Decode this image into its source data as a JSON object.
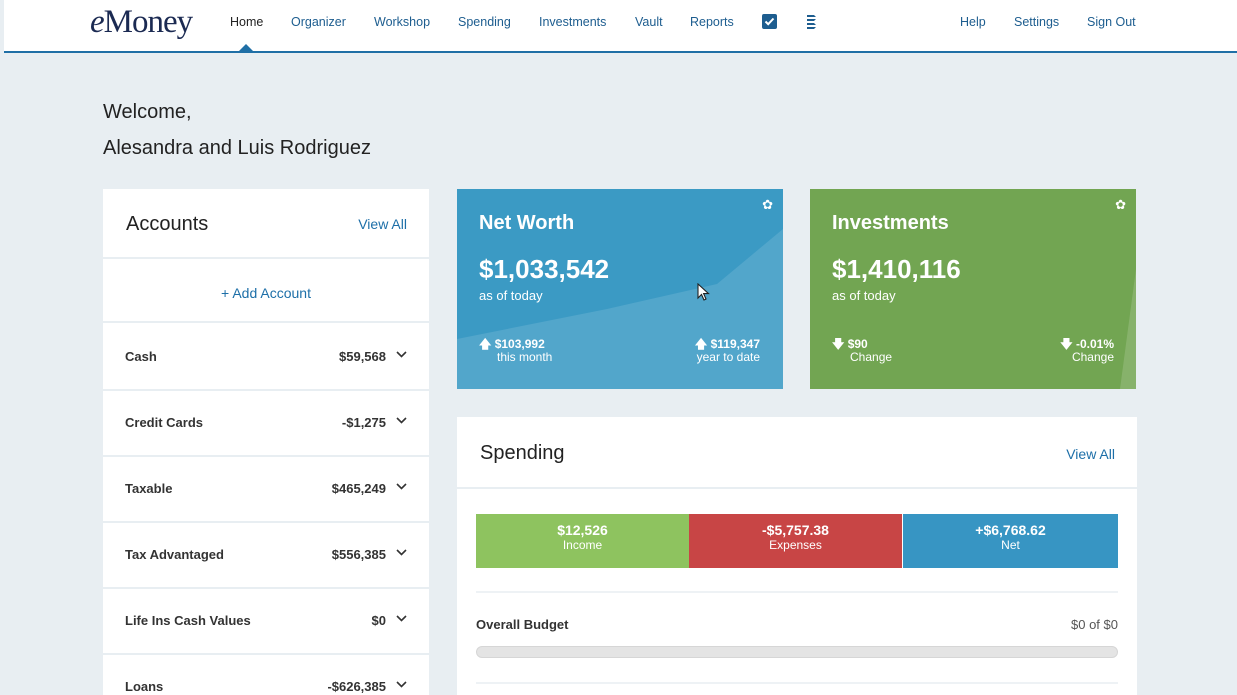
{
  "app": {
    "logo": "eMoney"
  },
  "nav": {
    "items": [
      "Home",
      "Organizer",
      "Workshop",
      "Spending",
      "Investments",
      "Vault",
      "Reports"
    ],
    "right": [
      "Help",
      "Settings",
      "Sign Out"
    ],
    "icons": [
      "checklist-icon",
      "document-stack-icon"
    ]
  },
  "welcome": {
    "line1": "Welcome,",
    "line2": "Alesandra and Luis Rodriguez"
  },
  "accounts": {
    "title": "Accounts",
    "view_all": "View All",
    "add_account": "+ Add Account",
    "rows": [
      {
        "name": "Cash",
        "value": "$59,568"
      },
      {
        "name": "Credit Cards",
        "value": "-$1,275"
      },
      {
        "name": "Taxable",
        "value": "$465,249"
      },
      {
        "name": "Tax Advantaged",
        "value": "$556,385"
      },
      {
        "name": "Life Ins Cash Values",
        "value": "$0"
      },
      {
        "name": "Loans",
        "value": "-$626,385"
      }
    ]
  },
  "net_worth": {
    "title": "Net Worth",
    "value": "$1,033,542",
    "as_of": "as of today",
    "month_change": "$103,992",
    "month_label": "this month",
    "ytd_change": "$119,347",
    "ytd_label": "year to date",
    "color": "#3b9ac4"
  },
  "investments": {
    "title": "Investments",
    "value": "$1,410,116",
    "as_of": "as of today",
    "change_amount": "$90",
    "change_amount_label": "Change",
    "change_pct": "-0.01%",
    "change_pct_label": "Change",
    "color": "#72a552"
  },
  "spending": {
    "title": "Spending",
    "view_all": "View All",
    "income": {
      "amount": "$12,526",
      "label": "Income",
      "color": "#8ec35f"
    },
    "expenses": {
      "amount": "-$5,757.38",
      "label": "Expenses",
      "color": "#c84545"
    },
    "net": {
      "amount": "+$6,768.62",
      "label": "Net",
      "color": "#3795c3"
    },
    "budget_label": "Overall Budget",
    "budget_value": "$0 of $0",
    "budget_progress": 0
  }
}
